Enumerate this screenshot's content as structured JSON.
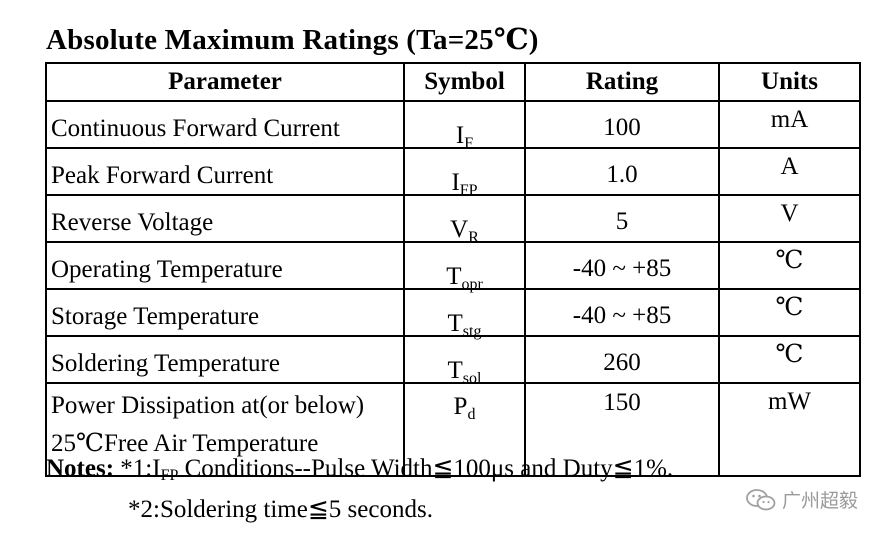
{
  "title": "Absolute Maximum Ratings (Ta=25℃)",
  "table": {
    "headers": {
      "parameter": "Parameter",
      "symbol": "Symbol",
      "rating": "Rating",
      "units": "Units"
    },
    "rows": [
      {
        "parameter": "Continuous Forward Current",
        "symbol_main": "I",
        "symbol_sub": "F",
        "rating": "100",
        "units": "mA"
      },
      {
        "parameter": "Peak Forward Current",
        "symbol_main": "I",
        "symbol_sub": "FP",
        "rating": "1.0",
        "units": "A"
      },
      {
        "parameter": "Reverse Voltage",
        "symbol_main": "V",
        "symbol_sub": "R",
        "rating": "5",
        "units": "V"
      },
      {
        "parameter": "Operating Temperature",
        "symbol_main": "T",
        "symbol_sub": "opr",
        "rating": "-40 ~ +85",
        "units": "℃"
      },
      {
        "parameter": "Storage Temperature",
        "symbol_main": "T",
        "symbol_sub": "stg",
        "rating": "-40 ~ +85",
        "units": "℃"
      },
      {
        "parameter": "Soldering Temperature",
        "symbol_main": "T",
        "symbol_sub": "sol",
        "rating": "260",
        "units": "℃"
      },
      {
        "parameter_line1": "Power Dissipation at(or below)",
        "parameter_line2": "25℃Free Air Temperature",
        "symbol_main": "P",
        "symbol_sub": "d",
        "rating": "150",
        "units": "mW"
      }
    ]
  },
  "notes": {
    "label": "Notes:",
    "note1_prefix": "*1:I",
    "note1_sub": "FP",
    "note1_text": " Conditions--Pulse Width≦100μs and Duty≦1%.",
    "note2": "*2:Soldering time≦5 seconds."
  },
  "watermark": {
    "text": "广州超毅",
    "icon": "wechat-icon"
  }
}
